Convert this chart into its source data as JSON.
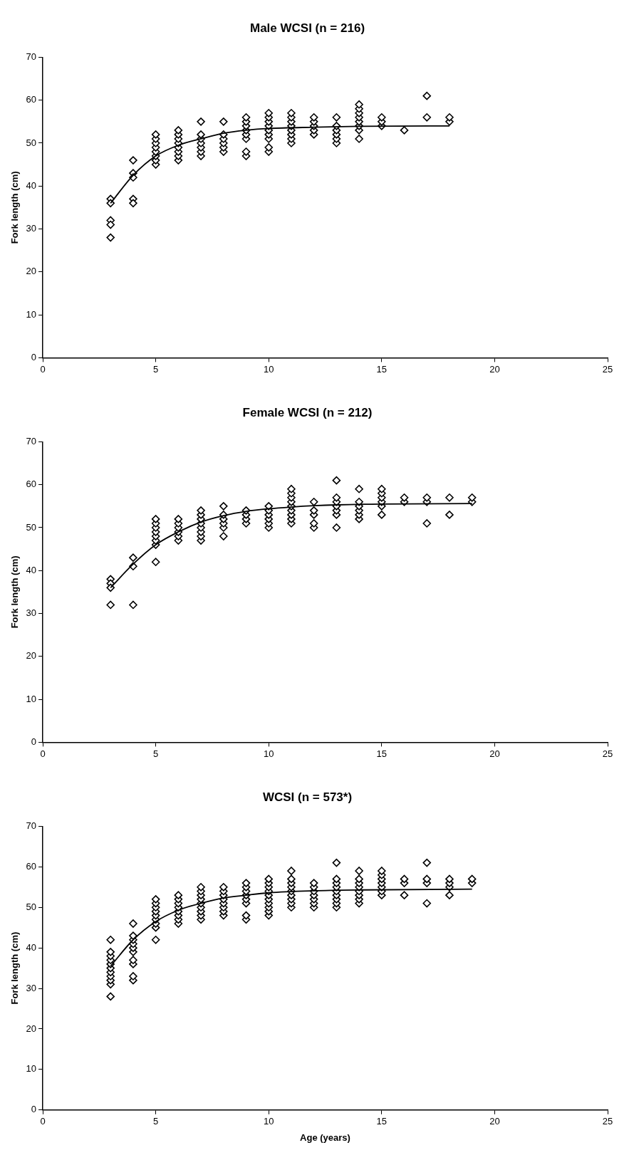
{
  "chart_data": [
    {
      "type": "scatter",
      "title": "Male WCSI (n = 216)",
      "ylabel": "Fork length (cm)",
      "xlim": [
        0,
        25
      ],
      "xticks": [
        0,
        5,
        10,
        15,
        20,
        25
      ],
      "ylim": [
        0,
        70
      ],
      "yticks": [
        0,
        10,
        20,
        30,
        40,
        50,
        60,
        70
      ],
      "grid": false,
      "legend": false,
      "marker": "diamond",
      "series": [
        {
          "type": "scatter",
          "color": "#000000",
          "x": [
            3,
            3,
            3,
            3,
            3,
            4,
            4,
            4,
            4,
            4,
            5,
            5,
            5,
            5,
            5,
            5,
            5,
            5,
            6,
            6,
            6,
            6,
            6,
            6,
            6,
            6,
            7,
            7,
            7,
            7,
            7,
            7,
            7,
            8,
            8,
            8,
            8,
            8,
            8,
            9,
            9,
            9,
            9,
            9,
            9,
            9,
            9,
            10,
            10,
            10,
            10,
            10,
            10,
            10,
            10,
            10,
            11,
            11,
            11,
            11,
            11,
            11,
            11,
            11,
            12,
            12,
            12,
            12,
            12,
            13,
            13,
            13,
            13,
            13,
            13,
            14,
            14,
            14,
            14,
            14,
            14,
            14,
            14,
            15,
            15,
            15,
            16,
            17,
            17,
            18,
            18
          ],
          "values": [
            37,
            36,
            32,
            31,
            28,
            46,
            43,
            42,
            37,
            36,
            45,
            46,
            47,
            48,
            49,
            50,
            51,
            52,
            46,
            47,
            48,
            49,
            50,
            51,
            52,
            53,
            47,
            48,
            49,
            50,
            51,
            52,
            55,
            48,
            49,
            50,
            51,
            52,
            55,
            47,
            48,
            51,
            52,
            53,
            54,
            55,
            56,
            48,
            49,
            51,
            52,
            53,
            54,
            55,
            56,
            57,
            50,
            51,
            52,
            53,
            54,
            55,
            56,
            57,
            52,
            53,
            54,
            55,
            56,
            50,
            51,
            52,
            53,
            54,
            56,
            51,
            53,
            54,
            55,
            56,
            57,
            58,
            59,
            54,
            55,
            56,
            53,
            56,
            61,
            55,
            56
          ]
        },
        {
          "type": "line",
          "color": "#000000",
          "marker": "none",
          "x": [
            3,
            4,
            5,
            6,
            7,
            8,
            9,
            10,
            12,
            14,
            18
          ],
          "values": [
            36,
            42.5,
            47,
            49.5,
            51,
            52.3,
            53,
            53.4,
            53.7,
            53.9,
            54
          ]
        }
      ]
    },
    {
      "type": "scatter",
      "title": "Female WCSI (n = 212)",
      "ylabel": "Fork length (cm)",
      "xlim": [
        0,
        25
      ],
      "xticks": [
        0,
        5,
        10,
        15,
        20,
        25
      ],
      "ylim": [
        0,
        70
      ],
      "yticks": [
        0,
        10,
        20,
        30,
        40,
        50,
        60,
        70
      ],
      "grid": false,
      "legend": false,
      "marker": "diamond",
      "series": [
        {
          "type": "scatter",
          "color": "#000000",
          "x": [
            3,
            3,
            3,
            3,
            4,
            4,
            4,
            5,
            5,
            5,
            5,
            5,
            5,
            5,
            5,
            6,
            6,
            6,
            6,
            6,
            6,
            7,
            7,
            7,
            7,
            7,
            7,
            7,
            7,
            8,
            8,
            8,
            8,
            8,
            8,
            9,
            9,
            9,
            9,
            10,
            10,
            10,
            10,
            10,
            10,
            11,
            11,
            11,
            11,
            11,
            11,
            11,
            11,
            11,
            12,
            12,
            12,
            12,
            12,
            13,
            13,
            13,
            13,
            13,
            13,
            13,
            14,
            14,
            14,
            14,
            14,
            14,
            15,
            15,
            15,
            15,
            15,
            15,
            16,
            16,
            17,
            17,
            17,
            18,
            18,
            19,
            19
          ],
          "values": [
            38,
            37,
            36,
            32,
            43,
            41,
            32,
            42,
            46,
            47,
            48,
            49,
            50,
            51,
            52,
            47,
            48,
            49,
            50,
            51,
            52,
            47,
            48,
            49,
            50,
            51,
            52,
            53,
            54,
            48,
            50,
            51,
            52,
            53,
            55,
            51,
            52,
            53,
            54,
            50,
            51,
            52,
            53,
            54,
            55,
            51,
            52,
            53,
            54,
            55,
            56,
            57,
            58,
            59,
            50,
            51,
            53,
            54,
            56,
            50,
            53,
            54,
            55,
            56,
            57,
            61,
            52,
            53,
            54,
            55,
            56,
            59,
            53,
            55,
            56,
            57,
            58,
            59,
            56,
            57,
            51,
            56,
            57,
            53,
            57,
            56,
            57
          ]
        },
        {
          "type": "line",
          "color": "#000000",
          "marker": "none",
          "x": [
            3,
            4,
            5,
            6,
            7,
            8,
            9,
            10,
            11,
            12,
            13,
            15,
            19
          ],
          "values": [
            36,
            41.5,
            46,
            49,
            51.3,
            52.8,
            53.8,
            54.4,
            54.8,
            55.1,
            55.3,
            55.5,
            55.6
          ]
        }
      ]
    },
    {
      "type": "scatter",
      "title": "WCSI (n = 573*)",
      "ylabel": "Fork length (cm)",
      "xlabel": "Age (years)",
      "xlim": [
        0,
        25
      ],
      "xticks": [
        0,
        5,
        10,
        15,
        20,
        25
      ],
      "ylim": [
        0,
        70
      ],
      "yticks": [
        0,
        10,
        20,
        30,
        40,
        50,
        60,
        70
      ],
      "grid": false,
      "legend": false,
      "marker": "diamond",
      "series": [
        {
          "type": "scatter",
          "color": "#000000",
          "x": [
            3,
            3,
            3,
            3,
            3,
            3,
            3,
            3,
            3,
            3,
            3,
            4,
            4,
            4,
            4,
            4,
            4,
            4,
            4,
            4,
            4,
            5,
            5,
            5,
            5,
            5,
            5,
            5,
            5,
            5,
            6,
            6,
            6,
            6,
            6,
            6,
            6,
            6,
            7,
            7,
            7,
            7,
            7,
            7,
            7,
            7,
            7,
            8,
            8,
            8,
            8,
            8,
            8,
            8,
            8,
            9,
            9,
            9,
            9,
            9,
            9,
            9,
            9,
            10,
            10,
            10,
            10,
            10,
            10,
            10,
            10,
            10,
            10,
            11,
            11,
            11,
            11,
            11,
            11,
            11,
            11,
            11,
            12,
            12,
            12,
            12,
            12,
            12,
            12,
            13,
            13,
            13,
            13,
            13,
            13,
            13,
            13,
            13,
            14,
            14,
            14,
            14,
            14,
            14,
            14,
            14,
            15,
            15,
            15,
            15,
            15,
            15,
            15,
            16,
            16,
            16,
            17,
            17,
            17,
            17,
            18,
            18,
            18,
            18,
            19,
            19
          ],
          "values": [
            28,
            31,
            32,
            33,
            34,
            35,
            36,
            37,
            38,
            39,
            42,
            32,
            33,
            36,
            37,
            39,
            40,
            41,
            42,
            43,
            46,
            42,
            45,
            46,
            47,
            48,
            49,
            50,
            51,
            52,
            46,
            47,
            48,
            49,
            50,
            51,
            52,
            53,
            47,
            48,
            49,
            50,
            51,
            52,
            53,
            54,
            55,
            48,
            49,
            50,
            51,
            52,
            53,
            54,
            55,
            47,
            48,
            51,
            52,
            53,
            54,
            55,
            56,
            48,
            49,
            50,
            51,
            52,
            53,
            54,
            55,
            56,
            57,
            50,
            51,
            52,
            53,
            54,
            55,
            56,
            57,
            59,
            50,
            51,
            52,
            53,
            54,
            55,
            56,
            50,
            51,
            52,
            53,
            54,
            55,
            56,
            57,
            61,
            51,
            52,
            53,
            54,
            55,
            56,
            57,
            59,
            53,
            54,
            55,
            56,
            57,
            58,
            59,
            53,
            56,
            57,
            51,
            56,
            57,
            61,
            53,
            55,
            56,
            57,
            56,
            57
          ]
        },
        {
          "type": "line",
          "color": "#000000",
          "marker": "none",
          "x": [
            3,
            4,
            5,
            6,
            7,
            8,
            9,
            10,
            12,
            14,
            19
          ],
          "values": [
            35.5,
            42,
            46.5,
            49.3,
            51,
            52.3,
            53,
            53.6,
            54.1,
            54.3,
            54.5
          ]
        }
      ]
    }
  ]
}
